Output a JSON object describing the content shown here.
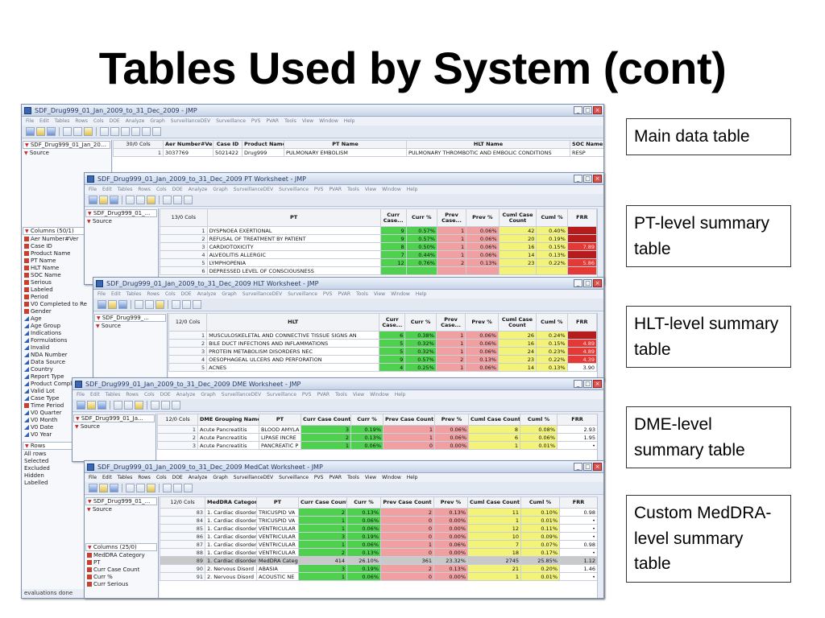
{
  "slide": {
    "title": "Tables Used by System (cont)"
  },
  "labels": [
    "Main data table",
    "PT-level summary table",
    "HLT-level summary table",
    "DME-level summary table",
    "Custom MedDRA-level summary table"
  ],
  "menus": {
    "main": [
      "File",
      "Edit",
      "Tables",
      "Rows",
      "Cols",
      "DOE",
      "Analyze",
      "Graph",
      "SurveillanceDEV",
      "Surveillance",
      "PVS",
      "PVAR",
      "Tools",
      "View",
      "Window",
      "Help"
    ]
  },
  "win_main": {
    "title": "SDF_Drug999_01_Jan_2009_to_31_Dec_2009 - JMP",
    "table_name": "SDF_Drug999_01_Jan_20...",
    "source": "Source",
    "cols_count": "30/0 Cols",
    "headers": [
      "Aer Number#Ver",
      "Case ID",
      "Product Name",
      "PT Name",
      "HLT Name",
      "SOC Name"
    ],
    "rows": [
      [
        "1",
        "3037769",
        "5021422",
        "Drug999",
        "PULMONARY EMBOLISM",
        "PULMONARY THROMBOTIC AND EMBOLIC CONDITIONS",
        "RESP"
      ]
    ],
    "columns_header": "Columns (50/1)",
    "columns": [
      "Aer Number#Ver",
      "Case ID",
      "Product Name",
      "PT Name",
      "HLT Name",
      "SOC Name",
      "Serious",
      "Labeled",
      "Period",
      "V0 Completed to Re",
      "Gender",
      "Age",
      "Age Group",
      "Indications",
      "Formulations",
      "Invalid",
      "NDA Number",
      "Data Source",
      "Country",
      "Report Type",
      "Product Compla",
      "Valid Lot",
      "Case Type",
      "Time Period",
      "V0 Quarter",
      "V0 Month",
      "V0 Date",
      "V0 Year"
    ],
    "rows_header": "Rows",
    "row_states": [
      "All rows",
      "Selected",
      "Excluded",
      "Hidden",
      "Labelled"
    ],
    "status": "evaluations done"
  },
  "win_pt": {
    "title": "SDF_Drug999_01_Jan_2009_to_31_Dec_2009 PT Worksheet - JMP",
    "table_name": "SDF_Drug999_01_...",
    "cols_count": "13/0 Cols",
    "headers": [
      "PT",
      "Curr Case...",
      "Curr %",
      "Prev Case...",
      "Prev %",
      "Cuml Case Count",
      "Cuml %",
      "FRR"
    ],
    "rows": [
      [
        "1",
        "DYSPNOEA EXERTIONAL",
        "9",
        "0.57%",
        "1",
        "0.06%",
        "42",
        "0.40%",
        ""
      ],
      [
        "2",
        "REFUSAL OF TREATMENT BY PATIENT",
        "9",
        "0.57%",
        "1",
        "0.06%",
        "20",
        "0.19%",
        ""
      ],
      [
        "3",
        "CARDIOTOXICITY",
        "8",
        "0.50%",
        "1",
        "0.06%",
        "16",
        "0.15%",
        "7.89"
      ],
      [
        "4",
        "ALVEOLITIS ALLERGIC",
        "7",
        "0.44%",
        "1",
        "0.06%",
        "14",
        "0.13%",
        ""
      ],
      [
        "5",
        "LYMPHOPENIA",
        "12",
        "0.76%",
        "2",
        "0.13%",
        "23",
        "0.22%",
        "5.86"
      ]
    ],
    "extra_rows": [
      "6",
      "DEPRESSED LEVEL OF CONSCIOUSNESS"
    ]
  },
  "win_hlt": {
    "title": "SDF_Drug999_01_Jan_2009_to_31_Dec_2009 HLT Worksheet - JMP",
    "table_name": "SDF_Drug999_...",
    "cols_count": "12/0 Cols",
    "headers": [
      "HLT",
      "Curr Case...",
      "Curr %",
      "Prev Case...",
      "Prev %",
      "Cuml Case Count",
      "Cuml %",
      "FRR"
    ],
    "rows": [
      [
        "1",
        "MUSCULOSKELETAL AND CONNECTIVE TISSUE SIGNS AN",
        "6",
        "0.38%",
        "1",
        "0.06%",
        "26",
        "0.24%",
        ""
      ],
      [
        "2",
        "BILE DUCT INFECTIONS AND INFLAMMATIONS",
        "5",
        "0.32%",
        "1",
        "0.06%",
        "16",
        "0.15%",
        "4.89"
      ],
      [
        "3",
        "PROTEIN METABOLISM DISORDERS NEC",
        "5",
        "0.32%",
        "1",
        "0.06%",
        "24",
        "0.23%",
        "4.89"
      ],
      [
        "4",
        "OESOPHAGEAL ULCERS AND PERFORATION",
        "9",
        "0.57%",
        "2",
        "0.13%",
        "23",
        "0.22%",
        "4.39"
      ],
      [
        "5",
        "ACNES",
        "4",
        "0.25%",
        "1",
        "0.06%",
        "14",
        "0.13%",
        "3.90"
      ]
    ]
  },
  "win_dme": {
    "title": "SDF_Drug999_01_Jan_2009_to_31_Dec_2009 DME Worksheet - JMP",
    "table_name": "SDF_Drug999_01_Ja...",
    "cols_count": "12/0 Cols",
    "headers": [
      "DME Grouping Name",
      "PT",
      "Curr Case Count",
      "Curr %",
      "Prev Case Count",
      "Prev %",
      "Cuml Case Count",
      "Cuml %",
      "FRR"
    ],
    "rows": [
      [
        "1",
        "Acute Pancreatitis",
        "BLOOD AMYLA",
        "3",
        "0.19%",
        "1",
        "0.06%",
        "8",
        "0.08%",
        "2.93"
      ],
      [
        "2",
        "Acute Pancreatitis",
        "LIPASE INCRE",
        "2",
        "0.13%",
        "1",
        "0.06%",
        "6",
        "0.06%",
        "1.95"
      ],
      [
        "3",
        "Acute Pancreatitis",
        "PANCREATIC P",
        "1",
        "0.06%",
        "0",
        "0.00%",
        "1",
        "0.01%",
        "•"
      ]
    ]
  },
  "win_med": {
    "title": "SDF_Drug999_01_Jan_2009_to_31_Dec_2009 MedCat Worksheet - JMP",
    "table_name": "SDF_Drug999_01_...",
    "cols_count": "12/0 Cols",
    "menu": [
      "File",
      "Edit",
      "Tables",
      "Rows",
      "Cols",
      "DOE",
      "Analyze",
      "Graph",
      "SurveillanceDEV",
      "Surveillance",
      "PVS",
      "PVAR",
      "Tools",
      "View",
      "Window",
      "Help"
    ],
    "headers": [
      "MedDRA Category",
      "PT",
      "Curr Case Count",
      "Curr %",
      "Prev Case Count",
      "Prev %",
      "Cuml Case Count",
      "Cuml %",
      "FRR"
    ],
    "rows": [
      [
        "83",
        "1. Cardiac disorder",
        "TRICUSPID VA",
        "2",
        "0.13%",
        "2",
        "0.13%",
        "11",
        "0.10%",
        "0.98"
      ],
      [
        "84",
        "1. Cardiac disorder",
        "TRICUSPID VA",
        "1",
        "0.06%",
        "0",
        "0.00%",
        "1",
        "0.01%",
        "•"
      ],
      [
        "85",
        "1. Cardiac disorder",
        "VENTRICULAR",
        "1",
        "0.06%",
        "0",
        "0.00%",
        "12",
        "0.11%",
        "•"
      ],
      [
        "86",
        "1. Cardiac disorder",
        "VENTRICULAR",
        "3",
        "0.19%",
        "0",
        "0.00%",
        "10",
        "0.09%",
        "•"
      ],
      [
        "87",
        "1. Cardiac disorder",
        "VENTRICULAR",
        "1",
        "0.06%",
        "1",
        "0.06%",
        "7",
        "0.07%",
        "0.98"
      ],
      [
        "88",
        "1. Cardiac disorder",
        "VENTRICULAR",
        "2",
        "0.13%",
        "0",
        "0.00%",
        "18",
        "0.17%",
        "•"
      ],
      [
        "89",
        "1. Cardiac disorder",
        "MedDRA Categ",
        "414",
        "26.10%",
        "361",
        "23.32%",
        "2745",
        "25.85%",
        "1.12"
      ],
      [
        "90",
        "2. Nervous Disord",
        "ABASIA",
        "3",
        "0.19%",
        "2",
        "0.13%",
        "21",
        "0.20%",
        "1.46"
      ],
      [
        "91",
        "2. Nervous Disord",
        "ACOUSTIC NE",
        "1",
        "0.06%",
        "0",
        "0.00%",
        "1",
        "0.01%",
        "•"
      ]
    ],
    "columns_header": "Columns (25/0)",
    "columns": [
      "MedDRA Category",
      "PT",
      "Curr Case Count",
      "Curr %",
      "Curr Serious"
    ]
  }
}
